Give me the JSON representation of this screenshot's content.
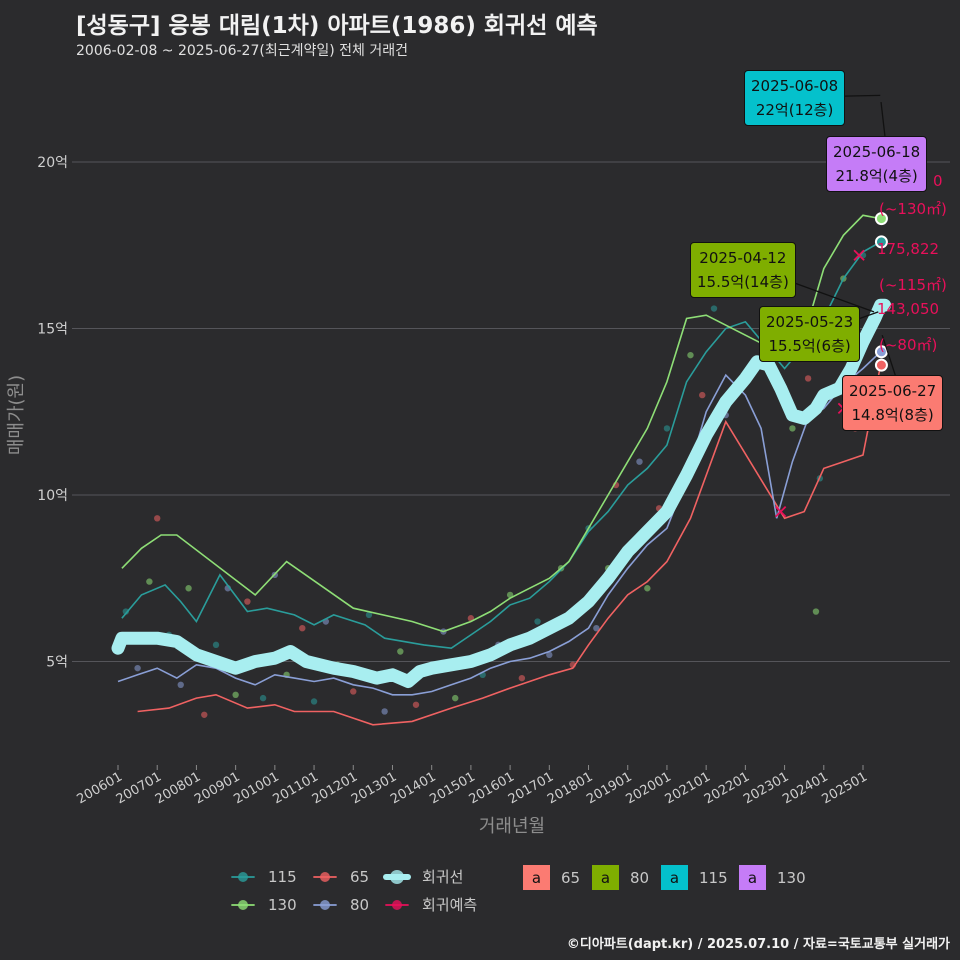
{
  "title": "[성동구] 응봉 대림(1차) 아파트(1986) 회귀선 예측",
  "subtitle": "2006-02-08 ~ 2025-06-27(최근계약일) 전체 거래건",
  "footer": "©디아파트(dapt.kr) / 2025.07.10 / 자료=국토교통부 실거래가",
  "colors": {
    "background": "#2b2b2d",
    "grid": "#55555a",
    "s65": "#f06262",
    "s80": "#8a9fd6",
    "s115": "#2a9d9b",
    "s130": "#8ede76",
    "regression": "#a8eef0",
    "forecast": "#e8105a",
    "label65": "#fb7b72",
    "label80": "#7fae00",
    "label115": "#04c1cc",
    "label130": "#c57cf7"
  },
  "chart_data": {
    "type": "line",
    "xlabel": "거래년월",
    "ylabel": "매매가(원)",
    "x_ticks": [
      "200601",
      "200701",
      "200801",
      "200901",
      "201001",
      "201101",
      "201201",
      "201301",
      "201401",
      "201501",
      "201601",
      "201701",
      "201801",
      "201901",
      "202001",
      "202101",
      "202201",
      "202301",
      "202401",
      "202501"
    ],
    "y_ticks": [
      {
        "value": 5,
        "label": "5억"
      },
      {
        "value": 10,
        "label": "10억"
      },
      {
        "value": 15,
        "label": "15억"
      },
      {
        "value": 20,
        "label": "20억"
      }
    ],
    "ylim": [
      2,
      23
    ],
    "grid": true,
    "series": [
      {
        "name": "115",
        "color_key": "s115",
        "points": [
          [
            2006.1,
            6.3
          ],
          [
            2006.6,
            7.0
          ],
          [
            2007.2,
            7.3
          ],
          [
            2007.6,
            6.8
          ],
          [
            2008.0,
            6.2
          ],
          [
            2008.6,
            7.6
          ],
          [
            2009.3,
            6.5
          ],
          [
            2009.8,
            6.6
          ],
          [
            2010.5,
            6.4
          ],
          [
            2011.0,
            6.1
          ],
          [
            2011.5,
            6.4
          ],
          [
            2012.3,
            6.1
          ],
          [
            2012.8,
            5.7
          ],
          [
            2013.8,
            5.5
          ],
          [
            2014.5,
            5.4
          ],
          [
            2015.0,
            5.8
          ],
          [
            2015.5,
            6.2
          ],
          [
            2016.0,
            6.7
          ],
          [
            2016.5,
            6.9
          ],
          [
            2017.0,
            7.4
          ],
          [
            2017.5,
            8.0
          ],
          [
            2018.0,
            8.9
          ],
          [
            2018.5,
            9.5
          ],
          [
            2019.0,
            10.3
          ],
          [
            2019.5,
            10.8
          ],
          [
            2020.0,
            11.5
          ],
          [
            2020.5,
            13.4
          ],
          [
            2021.0,
            14.3
          ],
          [
            2021.5,
            15.0
          ],
          [
            2022.0,
            15.2
          ],
          [
            2023.0,
            13.8
          ],
          [
            2023.5,
            14.5
          ],
          [
            2024.0,
            15.3
          ],
          [
            2024.5,
            16.5
          ],
          [
            2025.0,
            17.3
          ],
          [
            2025.45,
            17.6
          ]
        ]
      },
      {
        "name": "65",
        "color_key": "s65",
        "points": [
          [
            2006.5,
            3.5
          ],
          [
            2007.3,
            3.6
          ],
          [
            2008.0,
            3.9
          ],
          [
            2008.5,
            4.0
          ],
          [
            2009.3,
            3.6
          ],
          [
            2010.0,
            3.7
          ],
          [
            2010.5,
            3.5
          ],
          [
            2011.5,
            3.5
          ],
          [
            2012.5,
            3.1
          ],
          [
            2013.5,
            3.2
          ],
          [
            2014.5,
            3.6
          ],
          [
            2015.3,
            3.9
          ],
          [
            2016.0,
            4.2
          ],
          [
            2017.0,
            4.6
          ],
          [
            2017.6,
            4.8
          ],
          [
            2018.0,
            5.5
          ],
          [
            2018.5,
            6.3
          ],
          [
            2019.0,
            7.0
          ],
          [
            2019.5,
            7.4
          ],
          [
            2020.0,
            8.0
          ],
          [
            2020.6,
            9.3
          ],
          [
            2021.5,
            12.2
          ],
          [
            2023.0,
            9.3
          ],
          [
            2023.5,
            9.5
          ],
          [
            2024.0,
            10.8
          ],
          [
            2024.5,
            11.0
          ],
          [
            2025.0,
            11.2
          ],
          [
            2025.45,
            13.9
          ]
        ]
      },
      {
        "name": "80",
        "color_key": "s80",
        "points": [
          [
            2006.0,
            4.4
          ],
          [
            2006.5,
            4.6
          ],
          [
            2007.0,
            4.8
          ],
          [
            2007.5,
            4.5
          ],
          [
            2008.0,
            4.9
          ],
          [
            2008.5,
            4.8
          ],
          [
            2009.0,
            4.5
          ],
          [
            2009.5,
            4.3
          ],
          [
            2010.0,
            4.6
          ],
          [
            2010.5,
            4.5
          ],
          [
            2011.0,
            4.4
          ],
          [
            2011.5,
            4.5
          ],
          [
            2012.0,
            4.3
          ],
          [
            2012.5,
            4.2
          ],
          [
            2013.0,
            4.0
          ],
          [
            2013.5,
            4.0
          ],
          [
            2014.0,
            4.1
          ],
          [
            2014.5,
            4.3
          ],
          [
            2015.0,
            4.5
          ],
          [
            2015.5,
            4.8
          ],
          [
            2016.0,
            5.0
          ],
          [
            2016.5,
            5.1
          ],
          [
            2017.0,
            5.3
          ],
          [
            2017.5,
            5.6
          ],
          [
            2018.0,
            6.0
          ],
          [
            2018.5,
            7.0
          ],
          [
            2019.0,
            7.8
          ],
          [
            2019.5,
            8.5
          ],
          [
            2020.0,
            9.0
          ],
          [
            2020.5,
            10.5
          ],
          [
            2021.0,
            12.5
          ],
          [
            2021.5,
            13.6
          ],
          [
            2022.0,
            13.0
          ],
          [
            2022.4,
            12.0
          ],
          [
            2022.8,
            9.3
          ],
          [
            2023.2,
            11.0
          ],
          [
            2023.6,
            12.3
          ],
          [
            2024.0,
            12.6
          ],
          [
            2024.5,
            13.3
          ],
          [
            2025.0,
            13.8
          ],
          [
            2025.45,
            14.3
          ]
        ]
      },
      {
        "name": "130",
        "color_key": "s130",
        "points": [
          [
            2006.1,
            7.8
          ],
          [
            2006.6,
            8.4
          ],
          [
            2007.1,
            8.8
          ],
          [
            2007.5,
            8.8
          ],
          [
            2009.5,
            7.0
          ],
          [
            2010.3,
            8.0
          ],
          [
            2012.0,
            6.6
          ],
          [
            2013.5,
            6.2
          ],
          [
            2014.3,
            5.9
          ],
          [
            2015.0,
            6.2
          ],
          [
            2015.5,
            6.5
          ],
          [
            2016.0,
            6.9
          ],
          [
            2016.5,
            7.2
          ],
          [
            2017.0,
            7.5
          ],
          [
            2017.5,
            8.0
          ],
          [
            2018.0,
            9.0
          ],
          [
            2018.5,
            10.0
          ],
          [
            2019.0,
            11.0
          ],
          [
            2019.5,
            12.0
          ],
          [
            2020.0,
            13.4
          ],
          [
            2020.5,
            15.3
          ],
          [
            2021.0,
            15.4
          ],
          [
            2023.0,
            14.2
          ],
          [
            2023.5,
            14.8
          ],
          [
            2024.0,
            16.8
          ],
          [
            2024.5,
            17.8
          ],
          [
            2025.0,
            18.4
          ],
          [
            2025.45,
            18.3
          ]
        ]
      },
      {
        "name": "회귀선",
        "color_key": "regression",
        "points": [
          [
            2006.0,
            5.4
          ],
          [
            2006.1,
            5.7
          ],
          [
            2007.0,
            5.7
          ],
          [
            2007.5,
            5.6
          ],
          [
            2008.0,
            5.2
          ],
          [
            2009.0,
            4.8
          ],
          [
            2009.5,
            5.0
          ],
          [
            2010.0,
            5.1
          ],
          [
            2010.4,
            5.3
          ],
          [
            2010.8,
            5.0
          ],
          [
            2011.5,
            4.8
          ],
          [
            2012.0,
            4.7
          ],
          [
            2012.6,
            4.5
          ],
          [
            2013.0,
            4.6
          ],
          [
            2013.4,
            4.4
          ],
          [
            2013.7,
            4.7
          ],
          [
            2014.0,
            4.8
          ],
          [
            2014.5,
            4.9
          ],
          [
            2015.0,
            5.0
          ],
          [
            2015.5,
            5.2
          ],
          [
            2016.0,
            5.5
          ],
          [
            2016.5,
            5.7
          ],
          [
            2017.0,
            6.0
          ],
          [
            2017.5,
            6.3
          ],
          [
            2018.0,
            6.8
          ],
          [
            2018.5,
            7.5
          ],
          [
            2019.0,
            8.3
          ],
          [
            2019.5,
            8.9
          ],
          [
            2020.0,
            9.5
          ],
          [
            2020.5,
            10.6
          ],
          [
            2021.0,
            11.8
          ],
          [
            2021.5,
            12.8
          ],
          [
            2022.0,
            13.5
          ],
          [
            2022.3,
            14.0
          ],
          [
            2022.6,
            13.9
          ],
          [
            2022.9,
            13.2
          ],
          [
            2023.2,
            12.4
          ],
          [
            2023.5,
            12.3
          ],
          [
            2023.8,
            12.6
          ],
          [
            2024.0,
            13.0
          ],
          [
            2024.4,
            13.2
          ],
          [
            2024.7,
            13.8
          ],
          [
            2025.0,
            14.6
          ],
          [
            2025.3,
            15.3
          ],
          [
            2025.45,
            15.7
          ],
          [
            2025.55,
            15.7
          ]
        ]
      }
    ],
    "scatter_trades": [
      [
        2006.2,
        6.5
      ],
      [
        2006.5,
        4.8
      ],
      [
        2006.8,
        7.4
      ],
      [
        2007.0,
        9.3
      ],
      [
        2007.3,
        5.8
      ],
      [
        2007.6,
        4.3
      ],
      [
        2007.8,
        7.2
      ],
      [
        2008.2,
        3.4
      ],
      [
        2008.5,
        5.5
      ],
      [
        2008.8,
        7.2
      ],
      [
        2009.0,
        4.0
      ],
      [
        2009.3,
        6.8
      ],
      [
        2009.7,
        3.9
      ],
      [
        2010.0,
        7.6
      ],
      [
        2010.3,
        4.6
      ],
      [
        2010.7,
        6.0
      ],
      [
        2011.0,
        3.8
      ],
      [
        2011.3,
        6.2
      ],
      [
        2011.6,
        4.9
      ],
      [
        2012.0,
        4.1
      ],
      [
        2012.4,
        6.4
      ],
      [
        2012.8,
        3.5
      ],
      [
        2013.2,
        5.3
      ],
      [
        2013.6,
        3.7
      ],
      [
        2014.0,
        4.9
      ],
      [
        2014.3,
        5.9
      ],
      [
        2014.6,
        3.9
      ],
      [
        2015.0,
        6.3
      ],
      [
        2015.3,
        4.6
      ],
      [
        2015.7,
        5.5
      ],
      [
        2016.0,
        7.0
      ],
      [
        2016.3,
        4.5
      ],
      [
        2016.7,
        6.2
      ],
      [
        2017.0,
        5.2
      ],
      [
        2017.3,
        7.8
      ],
      [
        2017.6,
        4.9
      ],
      [
        2018.0,
        9.0
      ],
      [
        2018.2,
        6.0
      ],
      [
        2018.5,
        7.8
      ],
      [
        2018.7,
        10.3
      ],
      [
        2019.0,
        8.4
      ],
      [
        2019.3,
        11.0
      ],
      [
        2019.5,
        7.2
      ],
      [
        2019.8,
        9.6
      ],
      [
        2020.0,
        12.0
      ],
      [
        2020.3,
        10.0
      ],
      [
        2020.6,
        14.2
      ],
      [
        2020.9,
        13.0
      ],
      [
        2021.2,
        15.6
      ],
      [
        2021.5,
        12.4
      ],
      [
        2023.2,
        12.0
      ],
      [
        2023.6,
        13.5
      ],
      [
        2023.9,
        10.5
      ],
      [
        2024.2,
        14.8
      ],
      [
        2024.5,
        16.5
      ],
      [
        2024.8,
        12.0
      ],
      [
        2025.0,
        17.2
      ],
      [
        2025.2,
        12.2
      ],
      [
        2023.8,
        6.5
      ]
    ],
    "forecast_marks": [
      [
        2022.9,
        9.5
      ],
      [
        2024.5,
        12.6
      ],
      [
        2024.9,
        17.2
      ]
    ],
    "end_points": [
      {
        "series": "130",
        "x": 2025.47,
        "y": 18.3
      },
      {
        "series": "115",
        "x": 2025.47,
        "y": 17.6
      },
      {
        "series": "80",
        "x": 2025.47,
        "y": 14.3
      },
      {
        "series": "65",
        "x": 2025.47,
        "y": 13.9
      }
    ],
    "annotations": [
      {
        "date": "2025-06-08",
        "price": "22억(12층)",
        "group": "115",
        "fill_key": "label115",
        "x": 2025.44,
        "y": 22.0
      },
      {
        "date": "2025-06-18",
        "price": "21.8억(4층)",
        "group": "130",
        "fill_key": "label130",
        "x": 2025.46,
        "y": 21.8
      },
      {
        "date": "2025-04-12",
        "price": "15.5억(14층)",
        "group": "80",
        "fill_key": "label80",
        "x": 2025.28,
        "y": 15.5
      },
      {
        "date": "2025-05-23",
        "price": "15.5억(6층)",
        "group": "80",
        "fill_key": "label80",
        "x": 2025.39,
        "y": 15.5
      },
      {
        "date": "2025-06-27",
        "price": "14.8억(8층)",
        "group": "65",
        "fill_key": "label65",
        "x": 2025.49,
        "y": 14.8
      }
    ],
    "side_labels": [
      {
        "value": "175,822",
        "area": "(~115㎡)"
      },
      {
        "value": "143,050",
        "area": "(~80㎡)"
      }
    ],
    "side_label_partial": {
      "value": "0",
      "area": "(~130㎡)"
    },
    "legend": {
      "lines": [
        {
          "label": "115",
          "color_key": "s115"
        },
        {
          "label": "65",
          "color_key": "s65"
        },
        {
          "label": "회귀선",
          "color_key": "regression"
        },
        {
          "label": "130",
          "color_key": "s130"
        },
        {
          "label": "80",
          "color_key": "s80"
        },
        {
          "label": "회귀예측",
          "color_key": "forecast"
        }
      ],
      "boxes_letter": "a",
      "boxes": [
        {
          "label": "65",
          "fill_key": "label65"
        },
        {
          "label": "80",
          "fill_key": "label80"
        },
        {
          "label": "115",
          "fill_key": "label115"
        },
        {
          "label": "130",
          "fill_key": "label130"
        }
      ]
    }
  }
}
